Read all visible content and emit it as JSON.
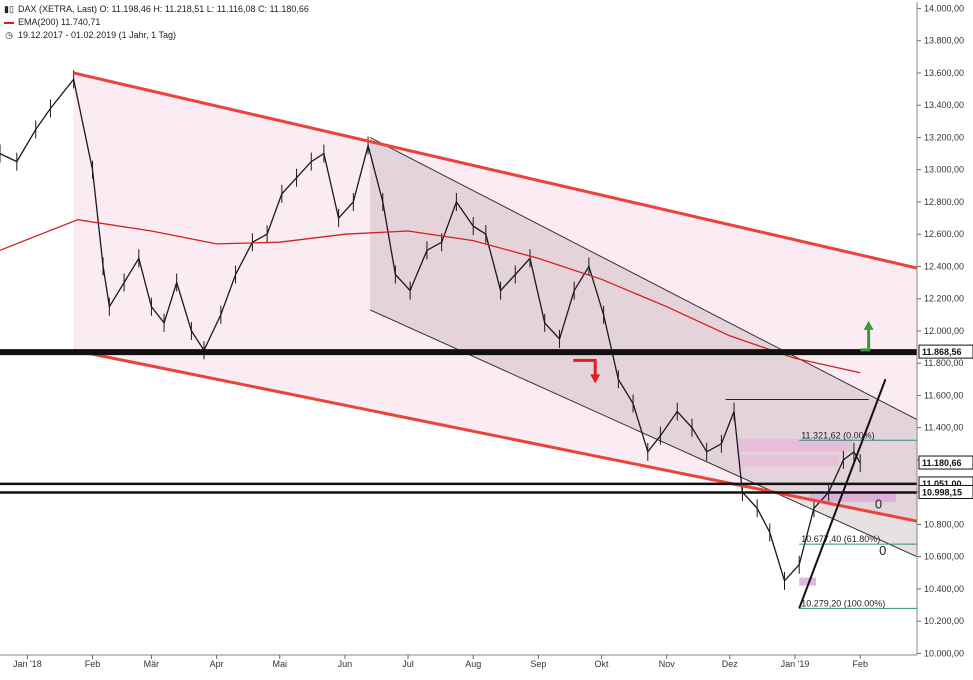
{
  "header": {
    "symbol_line": "DAX (XETRA, Last)  O: 11.198,46  H: 11.218,51  L: 11.116,08  C: 11.180,66",
    "ema_line": "EMA(200)  11.740,71",
    "range_line": "19.12.2017 - 01.02.2019  (1 Jahr, 1 Tag)",
    "chart_icon": "candlestick-icon",
    "ema_color": "#d42020",
    "range_icon": "clock-icon"
  },
  "chart_data": {
    "type": "line",
    "x_unit": "date",
    "y_scale": "linear",
    "ylim": [
      9990,
      14040
    ],
    "xlim": [
      "2017-12-19",
      "2019-02-28"
    ],
    "grid": false,
    "yticks": [
      "10.000,00",
      "10.200,00",
      "10.400,00",
      "10.600,00",
      "10.800,00",
      "11.000,00",
      "11.200,00",
      "11.400,00",
      "11.600,00",
      "11.800,00",
      "12.000,00",
      "12.200,00",
      "12.400,00",
      "12.600,00",
      "12.800,00",
      "13.000,00",
      "13.200,00",
      "13.400,00",
      "13.600,00",
      "13.800,00",
      "14.000,00"
    ],
    "ytick_values": [
      10000,
      10200,
      10400,
      10600,
      10800,
      11000,
      11200,
      11400,
      11600,
      11800,
      12000,
      12200,
      12400,
      12600,
      12800,
      13000,
      13200,
      13400,
      13600,
      13800,
      14000
    ],
    "xticks": [
      {
        "label": "Jan '18",
        "date": "2018-01-01"
      },
      {
        "label": "Feb",
        "date": "2018-02-01"
      },
      {
        "label": "Mär",
        "date": "2018-03-01"
      },
      {
        "label": "Apr",
        "date": "2018-04-01"
      },
      {
        "label": "Mai",
        "date": "2018-05-01"
      },
      {
        "label": "Jun",
        "date": "2018-06-01"
      },
      {
        "label": "Jul",
        "date": "2018-07-01"
      },
      {
        "label": "Aug",
        "date": "2018-08-01"
      },
      {
        "label": "Sep",
        "date": "2018-09-01"
      },
      {
        "label": "Okt",
        "date": "2018-10-01"
      },
      {
        "label": "Nov",
        "date": "2018-11-01"
      },
      {
        "label": "Dez",
        "date": "2018-12-01"
      },
      {
        "label": "Jan '19",
        "date": "2019-01-01"
      },
      {
        "label": "Feb",
        "date": "2019-02-01"
      }
    ],
    "series": [
      {
        "name": "DAX (XETRA, Last)",
        "color": "#1a1a1a",
        "x": [
          "2017-12-19",
          "2017-12-27",
          "2018-01-05",
          "2018-01-12",
          "2018-01-23",
          "2018-02-01",
          "2018-02-06",
          "2018-02-09",
          "2018-02-16",
          "2018-02-23",
          "2018-03-01",
          "2018-03-07",
          "2018-03-13",
          "2018-03-20",
          "2018-03-26",
          "2018-04-03",
          "2018-04-10",
          "2018-04-18",
          "2018-04-25",
          "2018-05-02",
          "2018-05-09",
          "2018-05-16",
          "2018-05-22",
          "2018-05-29",
          "2018-06-05",
          "2018-06-12",
          "2018-06-19",
          "2018-06-25",
          "2018-07-02",
          "2018-07-10",
          "2018-07-17",
          "2018-07-24",
          "2018-08-01",
          "2018-08-07",
          "2018-08-14",
          "2018-08-21",
          "2018-08-28",
          "2018-09-04",
          "2018-09-11",
          "2018-09-18",
          "2018-09-25",
          "2018-10-02",
          "2018-10-09",
          "2018-10-16",
          "2018-10-23",
          "2018-10-29",
          "2018-11-06",
          "2018-11-13",
          "2018-11-20",
          "2018-11-27",
          "2018-12-03",
          "2018-12-07",
          "2018-12-14",
          "2018-12-20",
          "2018-12-27",
          "2019-01-03",
          "2019-01-10",
          "2019-01-17",
          "2019-01-24",
          "2019-01-29",
          "2019-02-01"
        ],
        "values": [
          13100,
          13050,
          13250,
          13380,
          13560,
          13000,
          12400,
          12150,
          12300,
          12450,
          12150,
          12050,
          12300,
          12000,
          11880,
          12100,
          12350,
          12550,
          12600,
          12850,
          12950,
          13050,
          13100,
          12700,
          12800,
          13150,
          12800,
          12350,
          12250,
          12500,
          12550,
          12800,
          12650,
          12600,
          12250,
          12350,
          12450,
          12050,
          11950,
          12250,
          12400,
          12100,
          11700,
          11550,
          11250,
          11350,
          11500,
          11400,
          11250,
          11300,
          11500,
          11000,
          10900,
          10750,
          10450,
          10550,
          10900,
          11000,
          11200,
          11250,
          11180
        ]
      },
      {
        "name": "EMA(200)",
        "color": "#d42020",
        "x": [
          "2017-12-19",
          "2018-01-25",
          "2018-03-01",
          "2018-04-01",
          "2018-05-01",
          "2018-06-01",
          "2018-07-01",
          "2018-08-01",
          "2018-09-01",
          "2018-10-01",
          "2018-11-01",
          "2018-12-01",
          "2019-01-01",
          "2019-02-01"
        ],
        "values": [
          12500,
          12690,
          12620,
          12540,
          12550,
          12600,
          12620,
          12560,
          12450,
          12320,
          12150,
          11970,
          11830,
          11740
        ]
      }
    ],
    "levels": [
      {
        "label": "11.868,56",
        "value": 11868.56
      },
      {
        "label": "11.180,66",
        "value": 11180.66
      },
      {
        "label": "11.051,00",
        "value": 11051
      },
      {
        "label": "10.998,15",
        "value": 10998.15
      }
    ],
    "annotations": [
      "11.321,62 (0.00%)",
      "10.677,40 (61.80%)",
      "10.279,20 (100.00%)",
      "0",
      "0"
    ]
  }
}
